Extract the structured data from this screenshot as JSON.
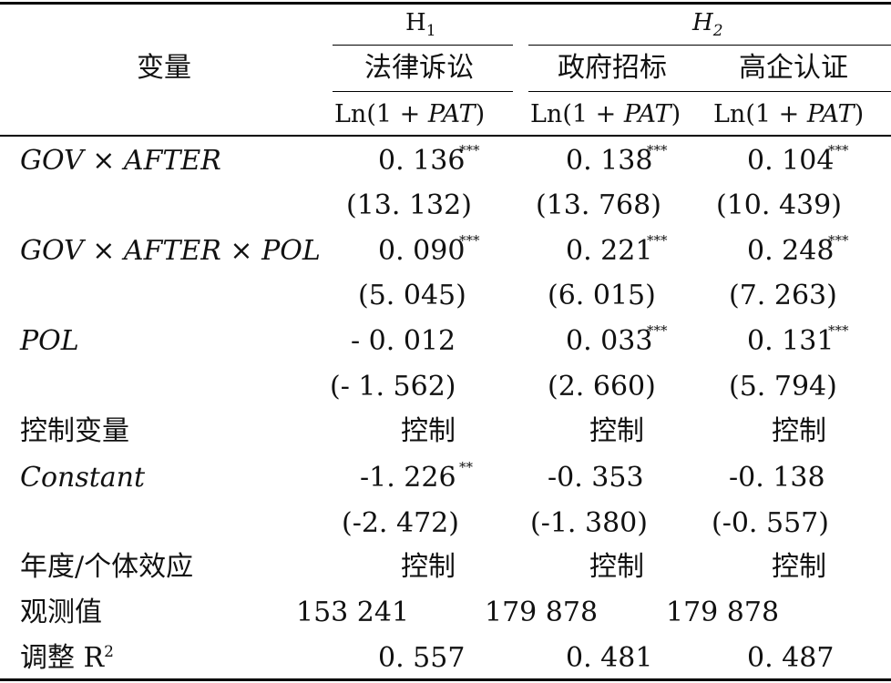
{
  "header": {
    "var_label": "变量",
    "h1": "H",
    "h1_sub": "1",
    "h2": "H",
    "h2_sub": "2",
    "col1_name": "法律诉讼",
    "col2_name": "政府招标",
    "col3_name": "高企认证",
    "dep_prefix": "Ln(1 + ",
    "dep_var": "PAT",
    "dep_suffix": ")"
  },
  "rows": {
    "gov_after": {
      "label": "GOV × AFTER",
      "c1": "0. 136",
      "c1_star": "***",
      "c2": "0. 138",
      "c2_star": "***",
      "c3": "0. 104",
      "c3_star": "***",
      "t1": "(13. 132)",
      "t2": "(13. 768)",
      "t3": "(10. 439)"
    },
    "gov_after_pol": {
      "label": "GOV × AFTER × POL",
      "c1": "0. 090",
      "c1_star": "***",
      "c2": "0. 221",
      "c2_star": "***",
      "c3": "0. 248",
      "c3_star": "***",
      "t1": "(5. 045)",
      "t2": "(6. 015)",
      "t3": "(7. 263)"
    },
    "pol": {
      "label": "POL",
      "c1": "- 0. 012",
      "c2": "0. 033",
      "c2_star": "***",
      "c3": "0. 131",
      "c3_star": "***",
      "t1": "(- 1. 562)",
      "t2": "(2. 660)",
      "t3": "(5. 794)"
    },
    "controls": {
      "label": "控制变量",
      "c1": "控制",
      "c2": "控制",
      "c3": "控制"
    },
    "constant": {
      "label": "Constant",
      "c1": "-1. 226",
      "c1_star": "**",
      "c2": "-0. 353",
      "c3": "-0. 138",
      "t1": "(-2. 472)",
      "t2": "(-1. 380)",
      "t3": "(-0. 557)"
    },
    "fixed_effects": {
      "label": "年度/个体效应",
      "c1": "控制",
      "c2": "控制",
      "c3": "控制"
    },
    "obs": {
      "label": "观测值",
      "c1": "153 241",
      "c2": "179 878",
      "c3": "179 878"
    },
    "r2": {
      "label": "调整 R",
      "label_sup": "2",
      "c1": "0. 557",
      "c2": "0. 481",
      "c3": "0. 487"
    }
  }
}
